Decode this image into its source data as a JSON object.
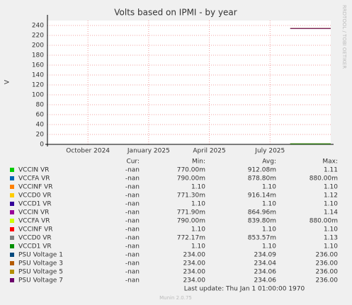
{
  "chart_data": {
    "type": "line",
    "title": "Volts based on IPMI - by year",
    "y_label": "V",
    "ylim": [
      0,
      250
    ],
    "yticks": [
      0,
      20,
      40,
      60,
      80,
      100,
      120,
      140,
      160,
      180,
      200,
      220,
      240
    ],
    "grid": true,
    "xlim": [
      "2024-08",
      "2025-10"
    ],
    "xticks": [
      {
        "value": "2024-10",
        "label": "October 2024"
      },
      {
        "value": "2025-01",
        "label": "January 2025"
      },
      {
        "value": "2025-04",
        "label": "April 2025"
      },
      {
        "value": "2025-07",
        "label": "July 2025"
      }
    ],
    "x": [
      "2025-08",
      "2025-10"
    ],
    "columns": [
      "Cur:",
      "Min:",
      "Avg:",
      "Max:"
    ],
    "series": [
      {
        "name": "VCCIN VR",
        "color": "#00cc00",
        "values": [
          1,
          1
        ],
        "cur": "-nan",
        "min": "770.00m",
        "avg": "912.08m",
        "max": "1.11"
      },
      {
        "name": "VCCFA VR",
        "color": "#0066b3",
        "values": [
          1,
          1
        ],
        "cur": "-nan",
        "min": "790.00m",
        "avg": "878.80m",
        "max": "880.00m"
      },
      {
        "name": "VCCINF VR",
        "color": "#ff8000",
        "values": [
          1,
          1
        ],
        "cur": "-nan",
        "min": "1.10",
        "avg": "1.10",
        "max": "1.10"
      },
      {
        "name": "VCCD0 VR",
        "color": "#ffcc00",
        "values": [
          1,
          1
        ],
        "cur": "-nan",
        "min": "771.30m",
        "avg": "916.14m",
        "max": "1.12"
      },
      {
        "name": "VCCD1 VR",
        "color": "#330099",
        "values": [
          1,
          1
        ],
        "cur": "-nan",
        "min": "1.10",
        "avg": "1.10",
        "max": "1.10"
      },
      {
        "name": "VCCIN VR",
        "color": "#990099",
        "values": [
          1,
          1
        ],
        "cur": "-nan",
        "min": "771.90m",
        "avg": "864.96m",
        "max": "1.14"
      },
      {
        "name": "VCCFA VR",
        "color": "#ccff00",
        "values": [
          1,
          1
        ],
        "cur": "-nan",
        "min": "790.00m",
        "avg": "839.80m",
        "max": "880.00m"
      },
      {
        "name": "VCCINF VR",
        "color": "#ff0000",
        "values": [
          1,
          1
        ],
        "cur": "-nan",
        "min": "1.10",
        "avg": "1.10",
        "max": "1.10"
      },
      {
        "name": "VCCD0 VR",
        "color": "#808080",
        "values": [
          1,
          1
        ],
        "cur": "-nan",
        "min": "772.17m",
        "avg": "853.57m",
        "max": "1.13"
      },
      {
        "name": "VCCD1 VR",
        "color": "#008f00",
        "values": [
          1,
          1
        ],
        "cur": "-nan",
        "min": "1.10",
        "avg": "1.10",
        "max": "1.10"
      },
      {
        "name": "PSU Voltage 1",
        "color": "#00487d",
        "values": [
          234,
          234
        ],
        "cur": "-nan",
        "min": "234.00",
        "avg": "234.09",
        "max": "236.00"
      },
      {
        "name": "PSU Voltage 3",
        "color": "#b35a00",
        "values": [
          234,
          234
        ],
        "cur": "-nan",
        "min": "234.00",
        "avg": "234.04",
        "max": "236.00"
      },
      {
        "name": "PSU Voltage 5",
        "color": "#b38f00",
        "values": [
          234,
          234
        ],
        "cur": "-nan",
        "min": "234.00",
        "avg": "234.06",
        "max": "236.00"
      },
      {
        "name": "PSU Voltage 7",
        "color": "#6b006b",
        "values": [
          234,
          234
        ],
        "cur": "-nan",
        "min": "234.00",
        "avg": "234.06",
        "max": "236.00"
      }
    ],
    "last_update": "Last update: Thu Jan  1 01:00:00 1970",
    "watermark": "RRDTOOL / TOBI OETIKER",
    "footer": "Munin 2.0.75"
  }
}
